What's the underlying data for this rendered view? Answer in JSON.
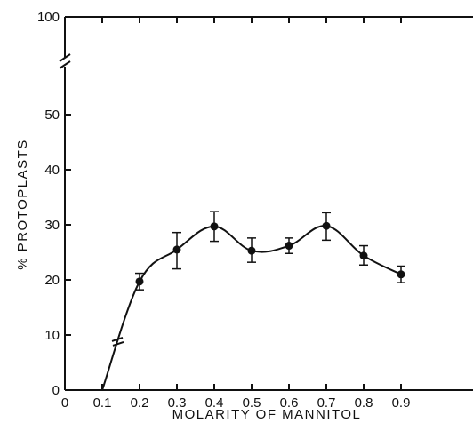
{
  "chart_data": {
    "type": "line",
    "title": "",
    "xlabel": "MOLARITY OF MANNITOL",
    "ylabel": "% PROTOPLASTS",
    "xlim": [
      0,
      0.95
    ],
    "ylim": [
      0,
      100
    ],
    "y_axis_break": [
      55,
      100
    ],
    "x_ticks": [
      0,
      0.1,
      0.2,
      0.3,
      0.4,
      0.5,
      0.6,
      0.7,
      0.8,
      0.9
    ],
    "x_tick_labels": [
      "0",
      "0.1",
      "0.2",
      "0.3",
      "0.4",
      "0.5",
      "0.6",
      "0.7",
      "0.8",
      "0.9"
    ],
    "y_ticks": [
      0,
      10,
      20,
      30,
      40,
      50,
      100
    ],
    "y_tick_labels": [
      "0",
      "10",
      "20",
      "30",
      "40",
      "50",
      "100"
    ],
    "grid": false,
    "legend": "none",
    "series": [
      {
        "x": [
          0.1,
          0.2,
          0.3,
          0.4,
          0.5,
          0.6,
          0.7,
          0.8,
          0.9
        ],
        "values": [
          0,
          19.7,
          25.5,
          29.7,
          25.3,
          26.2,
          29.8,
          24.4,
          21.0
        ],
        "error_low": [
          null,
          18.2,
          22.0,
          27.0,
          23.2,
          24.8,
          27.2,
          22.7,
          19.5
        ],
        "error_high": [
          null,
          21.2,
          28.6,
          32.4,
          27.6,
          27.6,
          32.2,
          26.2,
          22.5
        ],
        "marker": [
          false,
          true,
          true,
          true,
          true,
          true,
          true,
          true,
          true
        ]
      }
    ]
  }
}
